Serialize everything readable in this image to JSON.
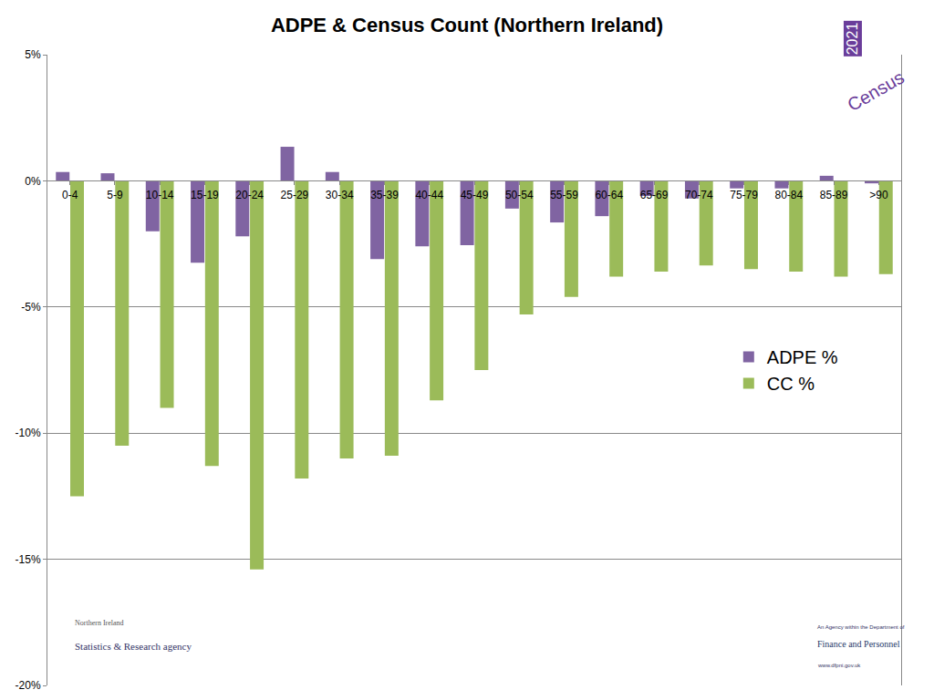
{
  "chart_data": {
    "type": "bar",
    "title": "ADPE & Census Count (Northern Ireland)",
    "categories": [
      "0-4",
      "5-9",
      "10-14",
      "15-19",
      "20-24",
      "25-29",
      "30-34",
      "35-39",
      "40-44",
      "45-49",
      "50-54",
      "55-59",
      "60-64",
      "65-69",
      "70-74",
      "75-79",
      "80-84",
      "85-89",
      ">90"
    ],
    "series": [
      {
        "name": "ADPE %",
        "color": "#8064a2",
        "values": [
          0.35,
          0.3,
          -2.0,
          -3.25,
          -2.2,
          1.35,
          0.35,
          -3.1,
          -2.6,
          -2.55,
          -1.1,
          -1.65,
          -1.4,
          -0.6,
          -0.7,
          -0.3,
          -0.3,
          0.2,
          -0.1
        ]
      },
      {
        "name": "CC %",
        "color": "#9bbb59",
        "values": [
          -12.5,
          -10.5,
          -9.0,
          -11.3,
          -15.4,
          -11.8,
          -11.0,
          -10.9,
          -8.7,
          -7.5,
          -5.3,
          -4.6,
          -3.8,
          -3.6,
          -3.35,
          -3.5,
          -3.6,
          -3.8,
          -3.7
        ]
      }
    ],
    "ylim": [
      -20,
      5
    ],
    "yticks": [
      {
        "value": -20,
        "label": "-20%"
      },
      {
        "value": -15,
        "label": "-15%"
      },
      {
        "value": -10,
        "label": "-10%"
      },
      {
        "value": -5,
        "label": "-5%"
      },
      {
        "value": 0,
        "label": "0%"
      },
      {
        "value": 5,
        "label": "5%"
      }
    ],
    "grid": true,
    "legend": "right",
    "annotations": [
      "2021",
      "Census",
      "Northern Ireland",
      "Statistics & Research agency",
      "An Agency within the Department of",
      "Finance and Personnel",
      "www.dfpni.gov.uk"
    ]
  }
}
